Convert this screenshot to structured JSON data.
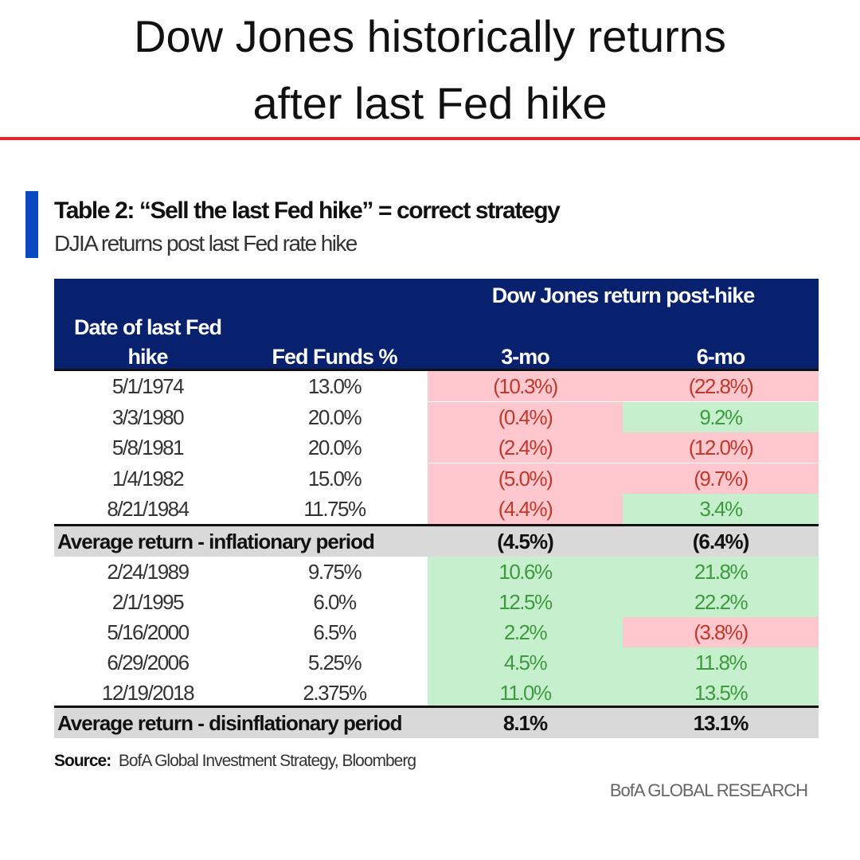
{
  "headline": {
    "line1": "Dow Jones historically returns",
    "line2": "after last Fed hike"
  },
  "colors": {
    "accent_red": "#e0262b",
    "header_navy": "#08216e",
    "bar_blue": "#0b49c2",
    "negative_bg": "#ffc7ce",
    "positive_bg": "#c6efce"
  },
  "table": {
    "title": "Table 2: “Sell the last Fed hike” = correct strategy",
    "subtitle": "DJIA returns post last Fed rate hike",
    "headers": {
      "group": "Dow Jones return post-hike",
      "date_line1": "Date of last Fed",
      "date_line2": "hike",
      "fed_funds": "Fed Funds %",
      "m3": "3-mo",
      "m6": "6-mo"
    },
    "inflationary_rows": [
      {
        "date": "5/1/1974",
        "fed": "13.0%",
        "m3": "(10.3%)",
        "m6": "(22.8%)"
      },
      {
        "date": "3/3/1980",
        "fed": "20.0%",
        "m3": "(0.4%)",
        "m6": "9.2%"
      },
      {
        "date": "5/8/1981",
        "fed": "20.0%",
        "m3": "(2.4%)",
        "m6": "(12.0%)"
      },
      {
        "date": "1/4/1982",
        "fed": "15.0%",
        "m3": "(5.0%)",
        "m6": "(9.7%)"
      },
      {
        "date": "8/21/1984",
        "fed": "11.75%",
        "m3": "(4.4%)",
        "m6": "3.4%"
      }
    ],
    "inflationary_avg": {
      "label": "Average return - inflationary period",
      "m3": "(4.5%)",
      "m6": "(6.4%)"
    },
    "disinflationary_rows": [
      {
        "date": "2/24/1989",
        "fed": "9.75%",
        "m3": "10.6%",
        "m6": "21.8%"
      },
      {
        "date": "2/1/1995",
        "fed": "6.0%",
        "m3": "12.5%",
        "m6": "22.2%"
      },
      {
        "date": "5/16/2000",
        "fed": "6.5%",
        "m3": "2.2%",
        "m6": "(3.8%)"
      },
      {
        "date": "6/29/2006",
        "fed": "5.25%",
        "m3": "4.5%",
        "m6": "11.8%"
      },
      {
        "date": "12/19/2018",
        "fed": "2.375%",
        "m3": "11.0%",
        "m6": "13.5%"
      }
    ],
    "disinflationary_avg": {
      "label": "Average return - disinflationary period",
      "m3": "8.1%",
      "m6": "13.1%"
    }
  },
  "source": {
    "label": "Source:",
    "text": "BofA Global Investment Strategy, Bloomberg"
  },
  "brand": "BofA GLOBAL RESEARCH"
}
